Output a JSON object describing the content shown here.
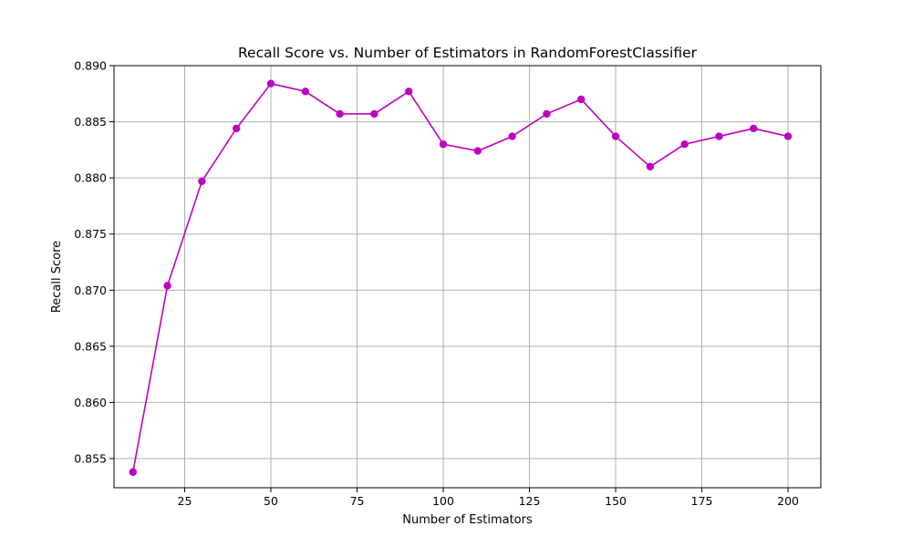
{
  "chart_data": {
    "type": "line",
    "title": "Recall Score vs. Number of Estimators in RandomForestClassifier",
    "xlabel": "Number of Estimators",
    "ylabel": "Recall Score",
    "x": [
      10,
      20,
      30,
      40,
      50,
      60,
      70,
      80,
      90,
      100,
      110,
      120,
      130,
      140,
      150,
      160,
      170,
      180,
      190,
      200
    ],
    "series": [
      {
        "values": [
          0.8538,
          0.8704,
          0.8797,
          0.8844,
          0.8884,
          0.8877,
          0.8857,
          0.8857,
          0.8877,
          0.883,
          0.8824,
          0.8837,
          0.8857,
          0.887,
          0.8837,
          0.881,
          0.883,
          0.8837,
          0.8844,
          0.8837
        ],
        "color": "#bf00bf",
        "marker": "circle"
      }
    ],
    "xlim": [
      4.5,
      209.5
    ],
    "ylim": [
      0.8524,
      0.89
    ],
    "xticks": [
      25,
      50,
      75,
      100,
      125,
      150,
      175,
      200
    ],
    "xtick_labels": [
      "25",
      "50",
      "75",
      "100",
      "125",
      "150",
      "175",
      "200"
    ],
    "yticks": [
      0.855,
      0.86,
      0.865,
      0.87,
      0.875,
      0.88,
      0.885,
      0.89
    ],
    "ytick_labels": [
      "0.855",
      "0.860",
      "0.865",
      "0.870",
      "0.875",
      "0.880",
      "0.885",
      "0.890"
    ],
    "grid": true,
    "grid_color": "#b0b0b0",
    "legend": "none"
  }
}
